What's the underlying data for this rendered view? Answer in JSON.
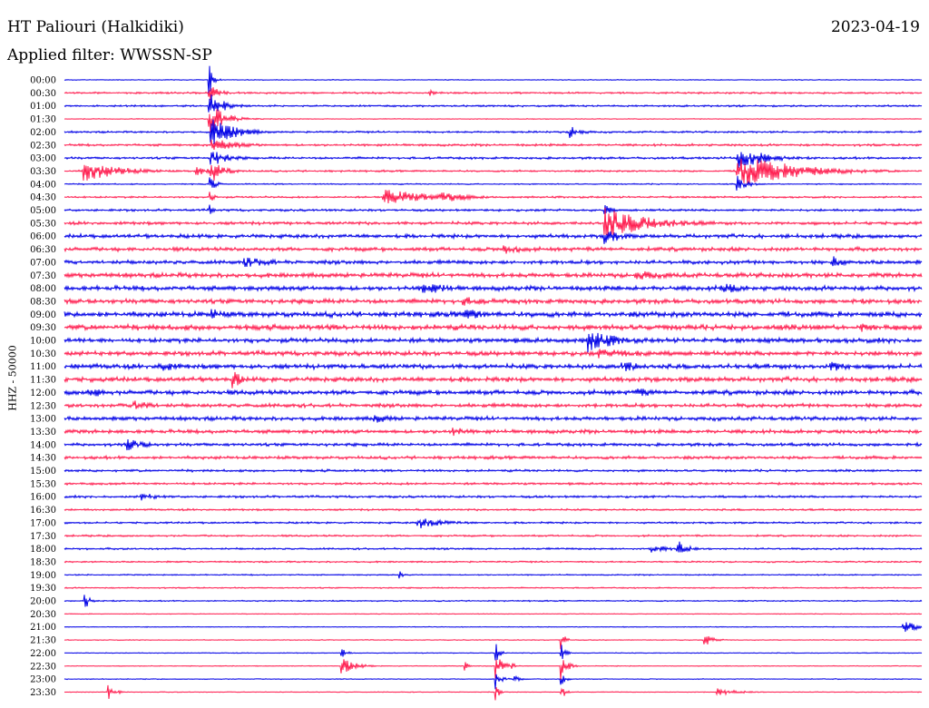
{
  "header": {
    "station": "HT Paliouri (Halkidiki)",
    "date": "2023-04-19",
    "filter": "Applied filter: WWSSN-SP"
  },
  "chart_data": {
    "type": "line",
    "title": "HT Paliouri (Halkidiki)",
    "ylabel": "HHZ - 50000",
    "colors": {
      "odd": "#0000e6",
      "even": "#ff1e50"
    },
    "rows": [
      "00:00",
      "00:30",
      "01:00",
      "01:30",
      "02:00",
      "02:30",
      "03:00",
      "03:30",
      "04:00",
      "04:30",
      "05:00",
      "05:30",
      "06:00",
      "06:30",
      "07:00",
      "07:30",
      "08:00",
      "08:30",
      "09:00",
      "09:30",
      "10:00",
      "10:30",
      "11:00",
      "11:30",
      "12:00",
      "12:30",
      "13:00",
      "13:30",
      "14:00",
      "14:30",
      "15:00",
      "15:30",
      "16:00",
      "16:30",
      "17:00",
      "17:30",
      "18:00",
      "18:30",
      "19:00",
      "19:30",
      "20:00",
      "20:30",
      "21:00",
      "21:30",
      "22:00",
      "22:30",
      "23:00",
      "23:30"
    ],
    "noise_level": [
      0.5,
      1.2,
      1.2,
      0.5,
      1.2,
      1.5,
      1.5,
      1.2,
      0.8,
      1.2,
      1.5,
      2,
      2.5,
      2.5,
      2.5,
      3,
      3,
      3,
      3.5,
      3.5,
      3,
      3,
      3,
      3,
      3,
      2.5,
      2.5,
      2.5,
      2,
      2,
      1.5,
      1.5,
      1.5,
      1.2,
      1.2,
      1.2,
      1.2,
      1,
      0.8,
      0.8,
      0.8,
      0.5,
      0.5,
      0.5,
      0.5,
      0.5,
      0.5,
      0.5
    ],
    "events": [
      {
        "row": 1,
        "x": 473,
        "amp": 4,
        "dur": 6
      },
      {
        "row": 0,
        "x": 230,
        "amp": 25,
        "dur": 4
      },
      {
        "row": 1,
        "x": 230,
        "amp": 10,
        "dur": 12
      },
      {
        "row": 2,
        "x": 230,
        "amp": 15,
        "dur": 16
      },
      {
        "row": 3,
        "x": 230,
        "amp": 20,
        "dur": 16
      },
      {
        "row": 4,
        "x": 232,
        "amp": 18,
        "dur": 24
      },
      {
        "row": 5,
        "x": 232,
        "amp": 8,
        "dur": 30
      },
      {
        "row": 6,
        "x": 232,
        "amp": 10,
        "dur": 20
      },
      {
        "row": 7,
        "x": 232,
        "amp": 14,
        "dur": 14
      },
      {
        "row": 8,
        "x": 231,
        "amp": 10,
        "dur": 6
      },
      {
        "row": 9,
        "x": 231,
        "amp": 8,
        "dur": 5
      },
      {
        "row": 10,
        "x": 231,
        "amp": 6,
        "dur": 4
      },
      {
        "row": 4,
        "x": 628,
        "amp": 8,
        "dur": 12
      },
      {
        "row": 7,
        "x": 91,
        "amp": 12,
        "dur": 40
      },
      {
        "row": 7,
        "x": 216,
        "amp": 5,
        "dur": 20
      },
      {
        "row": 6,
        "x": 812,
        "amp": 14,
        "dur": 30
      },
      {
        "row": 7,
        "x": 812,
        "amp": 20,
        "dur": 60
      },
      {
        "row": 8,
        "x": 812,
        "amp": 10,
        "dur": 10
      },
      {
        "row": 9,
        "x": 422,
        "amp": 10,
        "dur": 50
      },
      {
        "row": 9,
        "x": 485,
        "amp": 7,
        "dur": 30
      },
      {
        "row": 10,
        "x": 666,
        "amp": 10,
        "dur": 6
      },
      {
        "row": 11,
        "x": 666,
        "amp": 18,
        "dur": 50
      },
      {
        "row": 12,
        "x": 666,
        "amp": 10,
        "dur": 20
      },
      {
        "row": 13,
        "x": 555,
        "amp": 8,
        "dur": 20
      },
      {
        "row": 14,
        "x": 268,
        "amp": 6,
        "dur": 40
      },
      {
        "row": 14,
        "x": 918,
        "amp": 7,
        "dur": 14
      },
      {
        "row": 15,
        "x": 700,
        "amp": 6,
        "dur": 40
      },
      {
        "row": 16,
        "x": 466,
        "amp": 8,
        "dur": 30
      },
      {
        "row": 16,
        "x": 795,
        "amp": 8,
        "dur": 20
      },
      {
        "row": 17,
        "x": 510,
        "amp": 6,
        "dur": 30
      },
      {
        "row": 18,
        "x": 232,
        "amp": 7,
        "dur": 20
      },
      {
        "row": 18,
        "x": 510,
        "amp": 7,
        "dur": 30
      },
      {
        "row": 19,
        "x": 948,
        "amp": 6,
        "dur": 20
      },
      {
        "row": 20,
        "x": 648,
        "amp": 14,
        "dur": 30
      },
      {
        "row": 21,
        "x": 660,
        "amp": 6,
        "dur": 60
      },
      {
        "row": 22,
        "x": 175,
        "amp": 7,
        "dur": 24
      },
      {
        "row": 22,
        "x": 685,
        "amp": 8,
        "dur": 20
      },
      {
        "row": 22,
        "x": 915,
        "amp": 7,
        "dur": 24
      },
      {
        "row": 23,
        "x": 256,
        "amp": 12,
        "dur": 10
      },
      {
        "row": 24,
        "x": 97,
        "amp": 7,
        "dur": 20
      },
      {
        "row": 24,
        "x": 700,
        "amp": 7,
        "dur": 20
      },
      {
        "row": 25,
        "x": 146,
        "amp": 8,
        "dur": 20
      },
      {
        "row": 26,
        "x": 412,
        "amp": 6,
        "dur": 20
      },
      {
        "row": 27,
        "x": 495,
        "amp": 7,
        "dur": 20
      },
      {
        "row": 28,
        "x": 140,
        "amp": 8,
        "dur": 20
      },
      {
        "row": 32,
        "x": 155,
        "amp": 5,
        "dur": 20
      },
      {
        "row": 34,
        "x": 460,
        "amp": 7,
        "dur": 30
      },
      {
        "row": 36,
        "x": 718,
        "amp": 6,
        "dur": 20
      },
      {
        "row": 36,
        "x": 746,
        "amp": 12,
        "dur": 10
      },
      {
        "row": 38,
        "x": 440,
        "amp": 5,
        "dur": 4
      },
      {
        "row": 40,
        "x": 93,
        "amp": 10,
        "dur": 6
      },
      {
        "row": 42,
        "x": 995,
        "amp": 6,
        "dur": 28
      },
      {
        "row": 43,
        "x": 776,
        "amp": 8,
        "dur": 10
      },
      {
        "row": 44,
        "x": 376,
        "amp": 6,
        "dur": 6
      },
      {
        "row": 45,
        "x": 376,
        "amp": 10,
        "dur": 14
      },
      {
        "row": 44,
        "x": 546,
        "amp": 14,
        "dur": 4
      },
      {
        "row": 45,
        "x": 546,
        "amp": 16,
        "dur": 8
      },
      {
        "row": 46,
        "x": 546,
        "amp": 12,
        "dur": 6
      },
      {
        "row": 47,
        "x": 546,
        "amp": 10,
        "dur": 4
      },
      {
        "row": 45,
        "x": 562,
        "amp": 8,
        "dur": 4
      },
      {
        "row": 46,
        "x": 566,
        "amp": 5,
        "dur": 6
      },
      {
        "row": 43,
        "x": 618,
        "amp": 14,
        "dur": 4
      },
      {
        "row": 44,
        "x": 618,
        "amp": 16,
        "dur": 4
      },
      {
        "row": 45,
        "x": 618,
        "amp": 18,
        "dur": 6
      },
      {
        "row": 46,
        "x": 618,
        "amp": 14,
        "dur": 4
      },
      {
        "row": 47,
        "x": 618,
        "amp": 12,
        "dur": 4
      },
      {
        "row": 45,
        "x": 512,
        "amp": 6,
        "dur": 4
      },
      {
        "row": 47,
        "x": 119,
        "amp": 14,
        "dur": 6
      },
      {
        "row": 47,
        "x": 790,
        "amp": 5,
        "dur": 20
      }
    ]
  }
}
